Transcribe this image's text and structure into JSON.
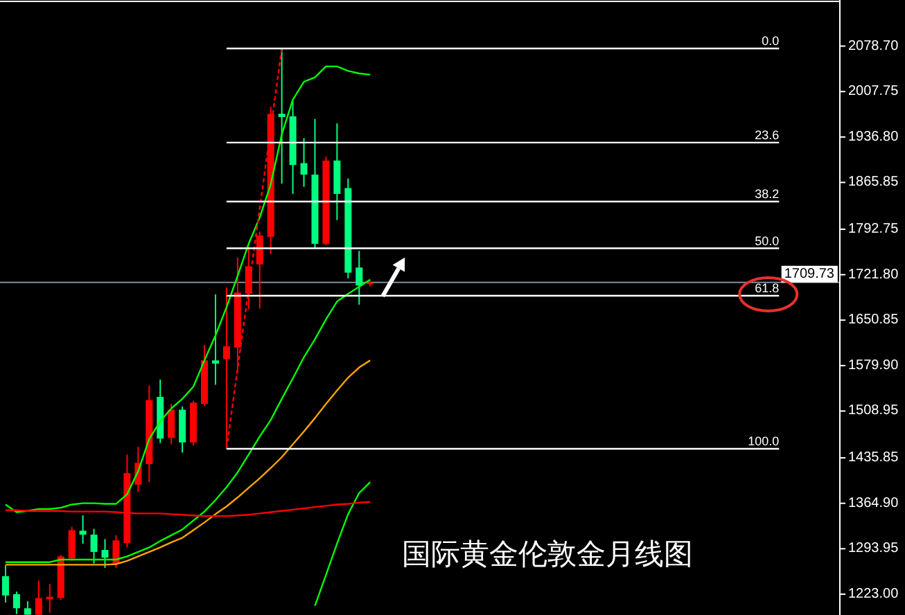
{
  "chart_data": {
    "type": "candlestick",
    "title": "国际黄金伦敦金月线图",
    "tick_labels": "y",
    "ylim": [
      1190.5,
      2148.5
    ],
    "yticks": [
      {
        "value": 2078.7,
        "label": "2078.70"
      },
      2007.75,
      {
        "value": 1936.8,
        "label": "1936.80"
      },
      1865.85,
      1792.75,
      {
        "value": 1721.8,
        "label": "1721.80"
      },
      1650.85,
      {
        "value": 1579.9,
        "label": "1579.90"
      },
      1508.95,
      1435.85,
      {
        "value": 1364.9,
        "label": "1364.90"
      },
      1293.95,
      {
        "value": 1223,
        "label": "1223.00"
      }
    ],
    "categories": [
      null,
      null,
      null,
      null,
      null,
      null,
      null,
      null,
      null,
      null,
      null,
      null,
      null,
      null,
      null,
      null,
      null,
      null,
      null,
      null,
      null,
      null,
      null,
      null,
      null,
      null,
      null,
      null,
      null,
      null,
      null,
      null,
      null,
      null,
      null,
      null,
      null,
      null,
      null,
      null,
      null,
      null,
      null,
      null,
      null,
      null,
      null,
      null,
      null,
      null,
      null,
      null,
      null,
      null,
      null,
      null,
      null,
      null,
      null,
      null,
      null,
      null,
      null,
      null,
      null,
      null,
      null,
      null,
      null,
      null,
      null,
      null,
      null,
      null,
      null,
      null
    ],
    "ohlc": [
      [
        1251,
        1268,
        1210,
        1221
      ],
      [
        1223,
        1227,
        1192,
        1201
      ],
      [
        1201,
        1212,
        1191,
        1191
      ],
      [
        1191,
        1244,
        1191,
        1217
      ],
      [
        1215,
        1239,
        1194,
        1219
      ],
      [
        1217,
        1284,
        1214,
        1282
      ],
      [
        1279,
        1328,
        1275,
        1323
      ],
      [
        1322,
        1346,
        1302,
        1316
      ],
      [
        1316,
        1325,
        1271,
        1289
      ],
      [
        1292,
        1309,
        1264,
        1280
      ],
      [
        1271,
        1315,
        1264,
        1307
      ],
      [
        1303,
        1441,
        1296,
        1412
      ],
      [
        1394,
        1453,
        1383,
        1428
      ],
      [
        1426,
        1549,
        1398,
        1526
      ],
      [
        1531,
        1558,
        1459,
        1466
      ],
      [
        1467,
        1520,
        1457,
        1511
      ],
      [
        1511,
        1516,
        1444,
        1460
      ],
      [
        1460,
        1525,
        1455,
        1522
      ],
      [
        1520,
        1612,
        1517,
        1588
      ],
      [
        1588,
        1691,
        1550,
        1583
      ],
      [
        1590,
        1702,
        1450,
        1610
      ],
      [
        1608,
        1749,
        1568,
        1694
      ],
      [
        1692,
        1765,
        1668,
        1735
      ],
      [
        1738,
        1789,
        1669,
        1783
      ],
      [
        1781,
        1984,
        1754,
        1973
      ],
      [
        1973,
        2075,
        1864,
        1968
      ],
      [
        1969,
        1994,
        1848,
        1893
      ],
      [
        1896,
        1935,
        1859,
        1878
      ],
      [
        1878,
        1965,
        1763,
        1770
      ],
      [
        1770,
        1906,
        1768,
        1900
      ],
      [
        1900,
        1958,
        1807,
        1848
      ],
      [
        1857,
        1872,
        1716,
        1725
      ],
      [
        1733,
        1759,
        1675,
        1705
      ],
      [
        1707,
        1712,
        1704,
        1709.73
      ],
      null,
      null,
      null,
      null,
      null,
      null,
      null,
      null,
      null,
      null,
      null,
      null,
      null,
      null,
      null,
      null,
      null,
      null,
      null,
      null,
      null,
      null,
      null,
      null,
      null,
      null,
      null,
      null,
      null,
      null,
      null,
      null,
      null,
      null,
      null,
      null,
      null,
      null,
      null,
      null,
      null,
      null
    ],
    "colors": [
      "#00ff7f",
      "#00ff7f",
      "#00ff7f",
      "#ff0000",
      "#ff0000",
      "#ff0000",
      "#ff0000",
      "#00ff7f",
      "#00ff7f",
      "#00ff7f",
      "#ff0000",
      "#ff0000",
      "#ff0000",
      "#ff0000",
      "#00ff7f",
      "#ff0000",
      "#00ff7f",
      "#ff0000",
      "#ff0000",
      "#00ff7f",
      "#ff0000",
      "#ff0000",
      "#ff0000",
      "#ff0000",
      "#ff0000",
      "#00ff7f",
      "#00ff7f",
      "#00ff7f",
      "#00ff7f",
      "#ff0000",
      "#00ff7f",
      "#00ff7f",
      "#00ff7f",
      "#ff0000",
      null,
      null,
      null,
      null,
      null,
      null,
      null,
      null,
      null,
      null,
      null,
      null,
      null,
      null,
      null,
      null,
      null,
      null,
      null,
      null,
      null,
      null,
      null,
      null,
      null,
      null,
      null,
      null,
      null,
      null,
      null,
      null,
      null,
      null,
      null,
      null,
      null,
      null,
      null,
      null,
      null,
      null
    ],
    "series": [
      {
        "type": "line",
        "color": "#00ff00",
        "values": [
          1363,
          1351,
          1353,
          1356,
          1356,
          1358,
          1363,
          1365,
          1365,
          1364,
          1364,
          1379,
          1415,
          1465,
          1493,
          1513,
          1528,
          1547,
          1588,
          1627,
          1671,
          1720,
          1770,
          1811,
          1863,
          1941,
          1995,
          2023,
          2030,
          2047,
          2047,
          2040,
          2036,
          2034,
          null,
          null,
          null,
          null,
          null,
          null,
          null,
          null,
          null,
          null,
          null,
          null,
          null,
          null,
          null,
          null,
          null,
          null,
          null,
          null,
          null,
          null,
          null,
          null,
          null,
          null,
          null,
          null,
          null,
          null,
          null,
          null,
          null,
          null,
          null,
          null,
          null,
          null,
          null,
          null,
          null,
          null
        ]
      },
      {
        "type": "line",
        "color": "#00ff00",
        "values": [
          1273,
          1273,
          1273,
          1273,
          1273,
          1277,
          1277,
          1277,
          1277,
          1277,
          1277,
          1282,
          1289,
          1296,
          1306,
          1315,
          1324,
          1338,
          1352,
          1370,
          1390,
          1413,
          1441,
          1469,
          1495,
          1528,
          1560,
          1593,
          1621,
          1652,
          1680,
          1692,
          1703,
          1714,
          null,
          null,
          null,
          null,
          null,
          null,
          null,
          null,
          null,
          null,
          null,
          null,
          null,
          null,
          null,
          null,
          null,
          null,
          null,
          null,
          null,
          null,
          null,
          null,
          null,
          null,
          null,
          null,
          null,
          null,
          null,
          null,
          null,
          null,
          null,
          null,
          null,
          null,
          null,
          null,
          null,
          null
        ]
      },
      {
        "type": "line",
        "color": "#00ff00",
        "values": [
          null,
          null,
          null,
          null,
          null,
          null,
          null,
          null,
          null,
          null,
          null,
          null,
          null,
          null,
          null,
          null,
          null,
          null,
          null,
          null,
          null,
          null,
          null,
          null,
          null,
          null,
          null,
          null,
          1205,
          1253,
          1302,
          1348,
          1381,
          1398,
          null,
          null,
          null,
          null,
          null,
          null,
          null,
          null,
          null,
          null,
          null,
          null,
          null,
          null,
          null,
          null,
          null,
          null,
          null,
          null,
          null,
          null,
          null,
          null,
          null,
          null,
          null,
          null,
          null,
          null,
          null,
          null,
          null,
          null,
          null,
          null,
          null,
          null,
          null,
          null,
          null,
          null
        ]
      },
      {
        "type": "line",
        "color": "#ffa500",
        "values": [
          1269,
          1269,
          1269,
          1269,
          1269,
          1269,
          1269,
          1269,
          1269,
          1269,
          1270,
          1275,
          1282,
          1289,
          1296,
          1304,
          1311,
          1323,
          1335,
          1348,
          1360,
          1374,
          1389,
          1404,
          1420,
          1437,
          1457,
          1477,
          1498,
          1520,
          1541,
          1561,
          1577,
          1588,
          null,
          null,
          null,
          null,
          null,
          null,
          null,
          null,
          null,
          null,
          null,
          null,
          null,
          null,
          null,
          null,
          null,
          null,
          null,
          null,
          null,
          null,
          null,
          null,
          null,
          null,
          null,
          null,
          null,
          null,
          null,
          null,
          null,
          null,
          null,
          null,
          null,
          null,
          null,
          null,
          null,
          null
        ]
      },
      {
        "type": "line",
        "color": "#ff0000",
        "values": [
          1354,
          1354,
          1353,
          1353,
          1353,
          1353,
          1352,
          1352,
          1352,
          1352,
          1351,
          1350,
          1349,
          1349,
          1349,
          1348,
          1347,
          1346,
          1345,
          1345,
          1345,
          1346,
          1347,
          1349,
          1351,
          1353,
          1355,
          1357,
          1359,
          1361,
          1363,
          1364,
          1366,
          1367,
          null,
          null,
          null,
          null,
          null,
          null,
          null,
          null,
          null,
          null,
          null,
          null,
          null,
          null,
          null,
          null,
          null,
          null,
          null,
          null,
          null,
          null,
          null,
          null,
          null,
          null,
          null,
          null,
          null,
          null,
          null,
          null,
          null,
          null,
          null,
          null,
          null,
          null,
          null,
          null,
          null,
          null
        ]
      },
      {
        "type": "line",
        "color": "#ff0000",
        "line_style": "dashed",
        "values": [
          null,
          null,
          null,
          null,
          null,
          null,
          null,
          null,
          null,
          null,
          null,
          null,
          null,
          null,
          null,
          null,
          null,
          null,
          null,
          null,
          1450,
          1575,
          1700,
          1825,
          1950,
          2075,
          null,
          null,
          null,
          null,
          null,
          null,
          null,
          null,
          null,
          null,
          null,
          null,
          null,
          null,
          null,
          null,
          null,
          null,
          null,
          null,
          null,
          null,
          null,
          null,
          null,
          null,
          null,
          null,
          null,
          null,
          null,
          null,
          null,
          null,
          null,
          null,
          null,
          null,
          null,
          null,
          null,
          null,
          null,
          null,
          null,
          null,
          null,
          null,
          null,
          null
        ]
      },
      {
        "type": "line",
        "name": "0.0",
        "color": "#ffffff",
        "values": [
          null,
          null,
          null,
          null,
          null,
          null,
          null,
          null,
          null,
          null,
          null,
          null,
          null,
          null,
          null,
          null,
          null,
          null,
          null,
          null,
          2075,
          2075,
          2075,
          2075,
          2075,
          2075,
          2075,
          2075,
          2075,
          2075,
          2075,
          2075,
          2075,
          2075,
          2075,
          2075,
          2075,
          2075,
          2075,
          2075,
          2075,
          2075,
          2075,
          2075,
          2075,
          2075,
          2075,
          2075,
          2075,
          2075,
          2075,
          2075,
          2075,
          2075,
          2075,
          2075,
          2075,
          2075,
          2075,
          2075,
          2075,
          2075,
          2075,
          2075,
          2075,
          2075,
          2075,
          2075,
          2075,
          2075,
          2075,
          null,
          null,
          null,
          null,
          null
        ]
      },
      {
        "type": "line",
        "name": "23.6",
        "color": "#ffffff",
        "values": [
          null,
          null,
          null,
          null,
          null,
          null,
          null,
          null,
          null,
          null,
          null,
          null,
          null,
          null,
          null,
          null,
          null,
          null,
          null,
          null,
          1928,
          1928,
          1928,
          1928,
          1928,
          1928,
          1928,
          1928,
          1928,
          1928,
          1928,
          1928,
          1928,
          1928,
          1928,
          1928,
          1928,
          1928,
          1928,
          1928,
          1928,
          1928,
          1928,
          1928,
          1928,
          1928,
          1928,
          1928,
          1928,
          1928,
          1928,
          1928,
          1928,
          1928,
          1928,
          1928,
          1928,
          1928,
          1928,
          1928,
          1928,
          1928,
          1928,
          1928,
          1928,
          1928,
          1928,
          1928,
          1928,
          1928,
          1928,
          null,
          null,
          null,
          null,
          null
        ]
      },
      {
        "type": "line",
        "name": "38.2",
        "color": "#ffffff",
        "values": [
          null,
          null,
          null,
          null,
          null,
          null,
          null,
          null,
          null,
          null,
          null,
          null,
          null,
          null,
          null,
          null,
          null,
          null,
          null,
          null,
          1836,
          1836,
          1836,
          1836,
          1836,
          1836,
          1836,
          1836,
          1836,
          1836,
          1836,
          1836,
          1836,
          1836,
          1836,
          1836,
          1836,
          1836,
          1836,
          1836,
          1836,
          1836,
          1836,
          1836,
          1836,
          1836,
          1836,
          1836,
          1836,
          1836,
          1836,
          1836,
          1836,
          1836,
          1836,
          1836,
          1836,
          1836,
          1836,
          1836,
          1836,
          1836,
          1836,
          1836,
          1836,
          1836,
          1836,
          1836,
          1836,
          1836,
          1836,
          null,
          null,
          null,
          null,
          null
        ]
      },
      {
        "type": "line",
        "name": "50.0",
        "color": "#ffffff",
        "values": [
          null,
          null,
          null,
          null,
          null,
          null,
          null,
          null,
          null,
          null,
          null,
          null,
          null,
          null,
          null,
          null,
          null,
          null,
          null,
          null,
          1763,
          1763,
          1763,
          1763,
          1763,
          1763,
          1763,
          1763,
          1763,
          1763,
          1763,
          1763,
          1763,
          1763,
          1763,
          1763,
          1763,
          1763,
          1763,
          1763,
          1763,
          1763,
          1763,
          1763,
          1763,
          1763,
          1763,
          1763,
          1763,
          1763,
          1763,
          1763,
          1763,
          1763,
          1763,
          1763,
          1763,
          1763,
          1763,
          1763,
          1763,
          1763,
          1763,
          1763,
          1763,
          1763,
          1763,
          1763,
          1763,
          1763,
          1763,
          null,
          null,
          null,
          null,
          null
        ]
      },
      {
        "type": "line",
        "name": "61.8",
        "color": "#ffffff",
        "values": [
          null,
          null,
          null,
          null,
          null,
          null,
          null,
          null,
          null,
          null,
          null,
          null,
          null,
          null,
          null,
          null,
          null,
          null,
          null,
          null,
          1689,
          1689,
          1689,
          1689,
          1689,
          1689,
          1689,
          1689,
          1689,
          1689,
          1689,
          1689,
          1689,
          1689,
          1689,
          1689,
          1689,
          1689,
          1689,
          1689,
          1689,
          1689,
          1689,
          1689,
          1689,
          1689,
          1689,
          1689,
          1689,
          1689,
          1689,
          1689,
          1689,
          1689,
          1689,
          1689,
          1689,
          1689,
          1689,
          1689,
          1689,
          1689,
          1689,
          1689,
          1689,
          1689,
          1689,
          1689,
          1689,
          1689,
          1689,
          null,
          null,
          null,
          null,
          null
        ]
      },
      {
        "type": "line",
        "name": "100.0",
        "color": "#ffffff",
        "values": [
          null,
          null,
          null,
          null,
          null,
          null,
          null,
          null,
          null,
          null,
          null,
          null,
          null,
          null,
          null,
          null,
          null,
          null,
          null,
          null,
          1450,
          1450,
          1450,
          1450,
          1450,
          1450,
          1450,
          1450,
          1450,
          1450,
          1450,
          1450,
          1450,
          1450,
          1450,
          1450,
          1450,
          1450,
          1450,
          1450,
          1450,
          1450,
          1450,
          1450,
          1450,
          1450,
          1450,
          1450,
          1450,
          1450,
          1450,
          1450,
          1450,
          1450,
          1450,
          1450,
          1450,
          1450,
          1450,
          1450,
          1450,
          1450,
          1450,
          1450,
          1450,
          1450,
          1450,
          1450,
          1450,
          1450,
          1450,
          null,
          null,
          null,
          null,
          null
        ]
      }
    ],
    "ref_lines": [
      {
        "axis": "y",
        "value": 1709.73,
        "label": "1709.73",
        "color": "#7f8fa0"
      }
    ]
  }
}
